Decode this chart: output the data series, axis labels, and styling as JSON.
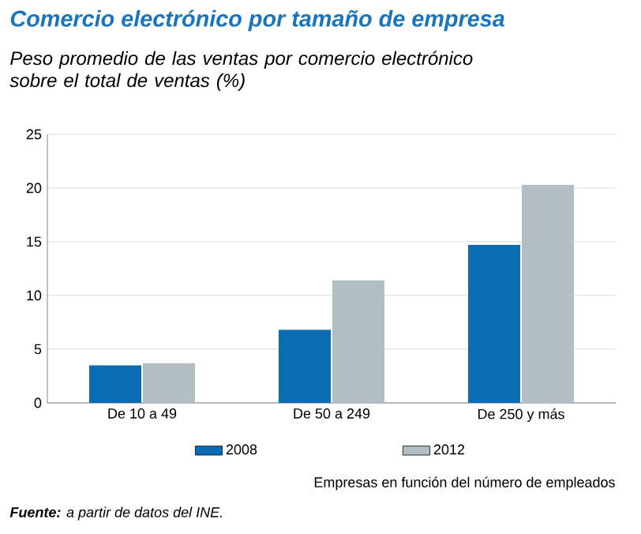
{
  "chart_data": {
    "type": "bar",
    "title": "Comercio electrónico por tamaño de empresa",
    "subtitle": "Peso promedio de las ventas por comercio electrónico sobre el total de ventas (%)",
    "xlabel": "Empresas en función del número de empleados",
    "annotations": [
      "**Fuente:** a partir de datos del INE."
    ],
    "categories": [
      "De 10 a 49",
      "De 50 a 249",
      "De 250 y más"
    ],
    "series": [
      {
        "name": "2008",
        "color": "#0a6db4",
        "values": [
          3.5,
          6.8,
          14.7
        ]
      },
      {
        "name": "2012",
        "color": "#b1bec3",
        "values": [
          3.7,
          11.4,
          20.3
        ]
      }
    ],
    "ylim": [
      0,
      25
    ],
    "yticks": [
      0,
      5,
      10,
      15,
      20,
      25
    ],
    "grid": "y",
    "legend": "bottom"
  }
}
